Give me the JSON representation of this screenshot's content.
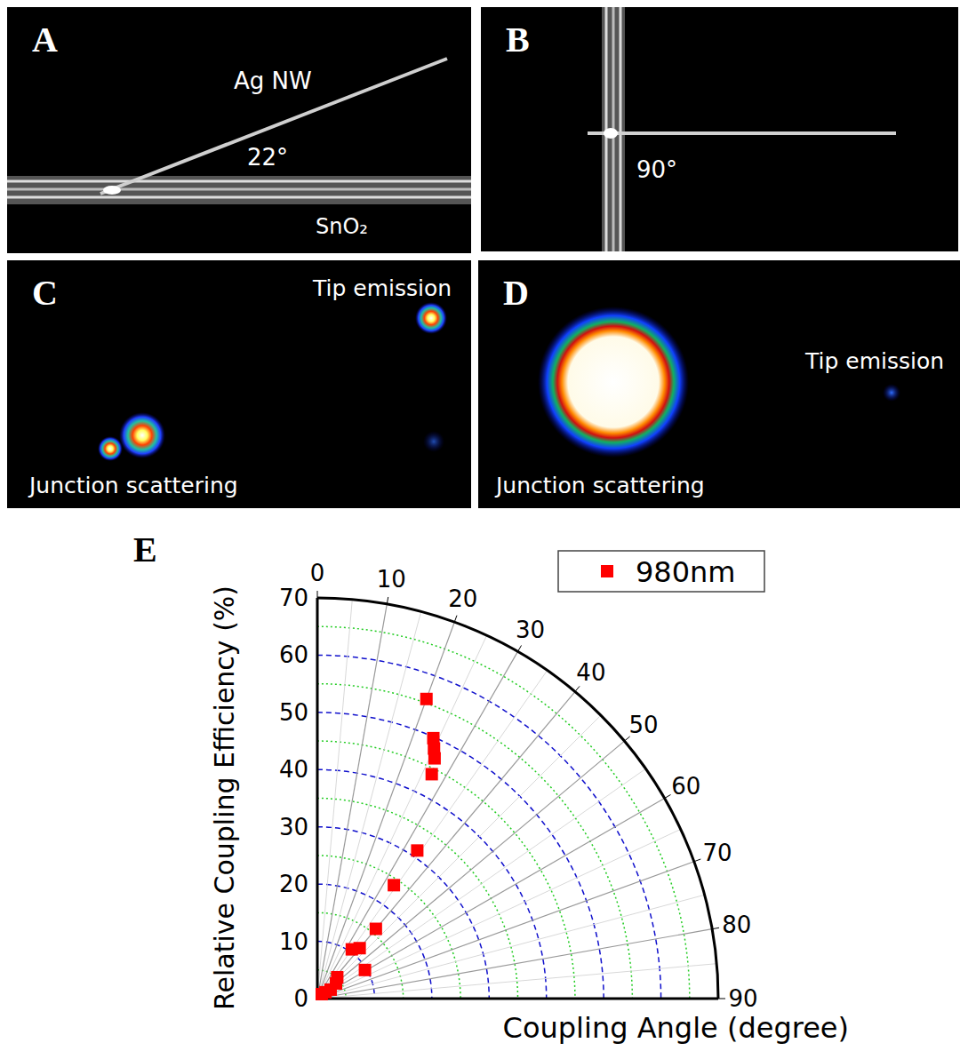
{
  "panels": [
    {
      "panel": "A",
      "wire_label": "Ag NW",
      "angle_label": "22°",
      "substrate_label": "SnO₂"
    },
    {
      "panel": "B",
      "angle_label": "90°"
    },
    {
      "panel": "C",
      "tip_label": "Tip emission",
      "junction_label": "Junction scattering"
    },
    {
      "panel": "D",
      "tip_label": "Tip emission",
      "junction_label": "Junction scattering"
    }
  ],
  "chart_data": {
    "panel": "E",
    "type": "polar",
    "xlabel": "Coupling Angle (degree)",
    "ylabel": "Relative Coupling Efficiency (%)",
    "xlim": [
      0,
      90
    ],
    "xticks": [
      0,
      10,
      20,
      30,
      40,
      50,
      60,
      70,
      80,
      90
    ],
    "ylim": [
      0,
      70
    ],
    "yticks": [
      0,
      10,
      20,
      30,
      40,
      50,
      60,
      70
    ],
    "grid": true,
    "legend": "top right",
    "series": [
      {
        "name": "980nm",
        "color": "#ff0000",
        "marker": "square",
        "angles": [
          20,
          24,
          25,
          26,
          27,
          34,
          34,
          40,
          40,
          35,
          59,
          43,
          51,
          56,
          52,
          45
        ],
        "values": [
          55.7,
          49.8,
          48.2,
          46.7,
          44,
          31.2,
          23.9,
          15.9,
          11.5,
          10.5,
          9.7,
          5.1,
          4.2,
          2.8,
          1.8,
          1.1
        ]
      }
    ]
  }
}
